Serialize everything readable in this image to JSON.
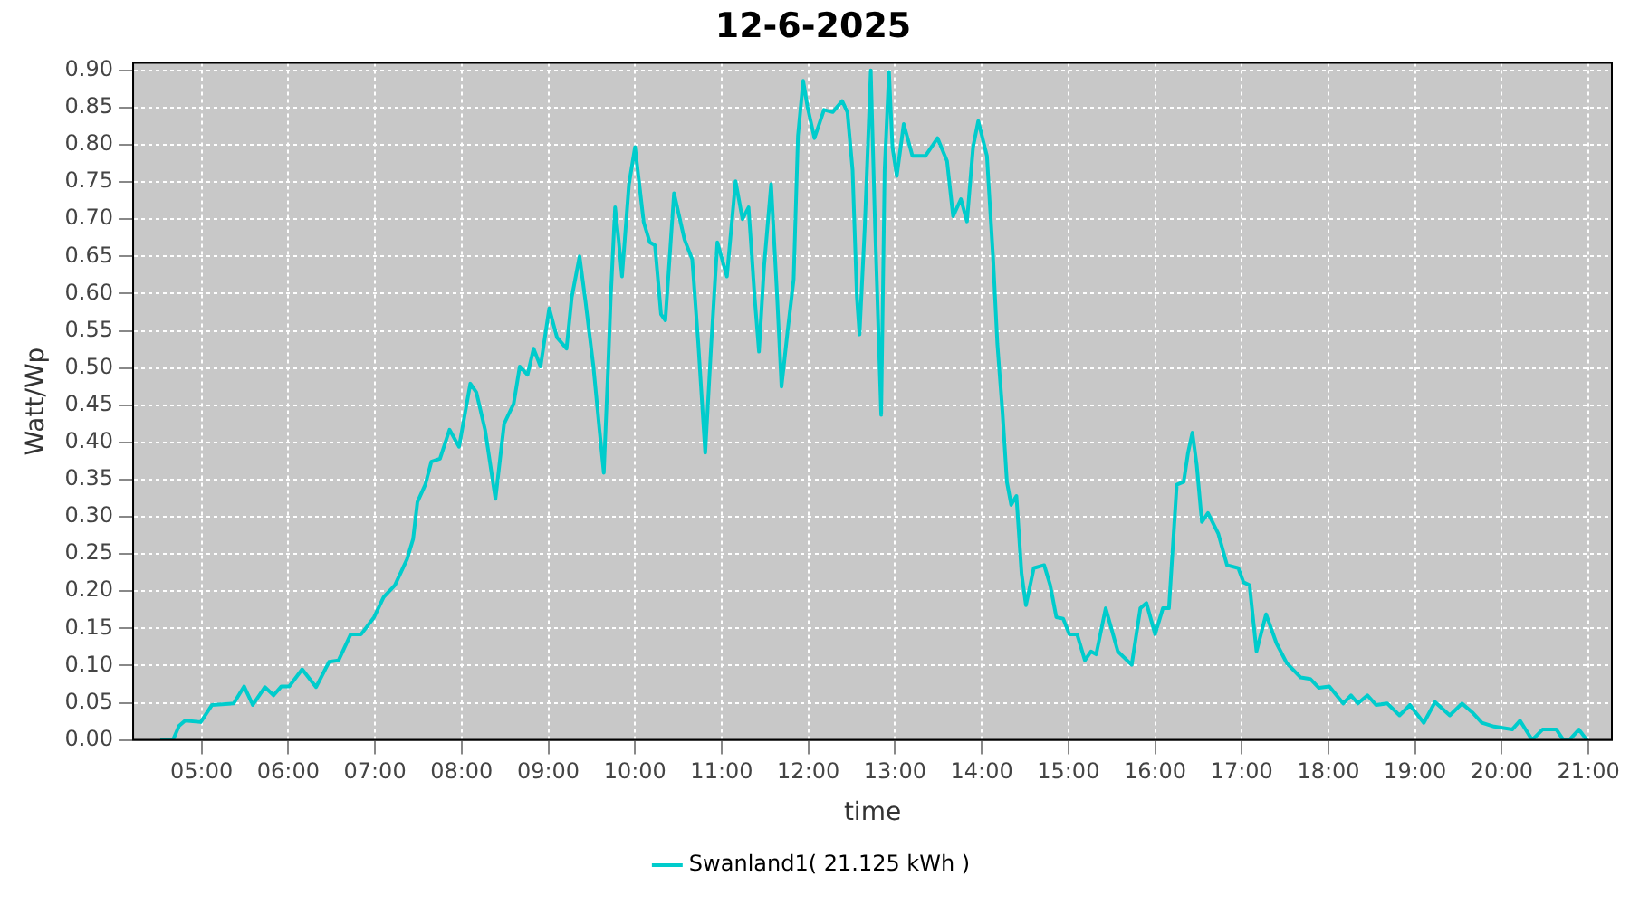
{
  "chart_data": {
    "type": "line",
    "title": "12-6-2025",
    "xlabel": "time",
    "ylabel": "Watt/Wp",
    "legend": "bottom",
    "grid": true,
    "marker": "none",
    "line_style": "solid",
    "xlim": [
      4.21,
      21.27
    ],
    "xticks": [
      {
        "value": 5,
        "label": "05:00"
      },
      {
        "value": 6,
        "label": "06:00"
      },
      {
        "value": 7,
        "label": "07:00"
      },
      {
        "value": 8,
        "label": "08:00"
      },
      {
        "value": 9,
        "label": "09:00"
      },
      {
        "value": 10,
        "label": "10:00"
      },
      {
        "value": 11,
        "label": "11:00"
      },
      {
        "value": 12,
        "label": "12:00"
      },
      {
        "value": 13,
        "label": "13:00"
      },
      {
        "value": 14,
        "label": "14:00"
      },
      {
        "value": 15,
        "label": "15:00"
      },
      {
        "value": 16,
        "label": "16:00"
      },
      {
        "value": 17,
        "label": "17:00"
      },
      {
        "value": 18,
        "label": "18:00"
      },
      {
        "value": 19,
        "label": "19:00"
      },
      {
        "value": 20,
        "label": "20:00"
      },
      {
        "value": 21,
        "label": "21:00"
      }
    ],
    "ylim": [
      0,
      0.91
    ],
    "yticks": [
      {
        "value": 0,
        "label": "0.00"
      },
      {
        "value": 0.05,
        "label": "0.05"
      },
      {
        "value": 0.1,
        "label": "0.10"
      },
      {
        "value": 0.15,
        "label": "0.15"
      },
      {
        "value": 0.2,
        "label": "0.20"
      },
      {
        "value": 0.25,
        "label": "0.25"
      },
      {
        "value": 0.3,
        "label": "0.30"
      },
      {
        "value": 0.35,
        "label": "0.35"
      },
      {
        "value": 0.4,
        "label": "0.40"
      },
      {
        "value": 0.45,
        "label": "0.45"
      },
      {
        "value": 0.5,
        "label": "0.50"
      },
      {
        "value": 0.55,
        "label": "0.55"
      },
      {
        "value": 0.6,
        "label": "0.60"
      },
      {
        "value": 0.65,
        "label": "0.65"
      },
      {
        "value": 0.7,
        "label": "0.70"
      },
      {
        "value": 0.75,
        "label": "0.75"
      },
      {
        "value": 0.8,
        "label": "0.80"
      },
      {
        "value": 0.85,
        "label": "0.85"
      },
      {
        "value": 0.9,
        "label": "0.90"
      }
    ],
    "series": [
      {
        "name": "Swanland1( 21.125 kWh )",
        "color": "#00cccc",
        "x": [
          4.54,
          4.67,
          4.74,
          4.81,
          4.99,
          5.12,
          5.37,
          5.49,
          5.59,
          5.73,
          5.83,
          5.92,
          6.01,
          6.16,
          6.32,
          6.47,
          6.58,
          6.72,
          6.84,
          6.99,
          7.1,
          7.23,
          7.37,
          7.44,
          7.49,
          7.58,
          7.65,
          7.75,
          7.86,
          7.97,
          8.1,
          8.17,
          8.27,
          8.39,
          8.49,
          8.6,
          8.67,
          8.76,
          8.83,
          8.91,
          9.01,
          9.1,
          9.21,
          9.27,
          9.36,
          9.43,
          9.52,
          9.59,
          9.64,
          9.69,
          9.72,
          9.77,
          9.81,
          9.85,
          9.93,
          10.0,
          10.1,
          10.17,
          10.23,
          10.3,
          10.35,
          10.45,
          10.57,
          10.66,
          10.73,
          10.81,
          10.88,
          10.95,
          11.06,
          11.16,
          11.24,
          11.31,
          11.38,
          11.43,
          11.49,
          11.57,
          11.64,
          11.69,
          11.76,
          11.83,
          11.88,
          11.94,
          11.99,
          12.07,
          12.18,
          12.28,
          12.39,
          12.45,
          12.51,
          12.56,
          12.59,
          12.65,
          12.72,
          12.77,
          12.84,
          12.88,
          12.93,
          12.97,
          13.02,
          13.1,
          13.2,
          13.35,
          13.49,
          13.6,
          13.67,
          13.76,
          13.83,
          13.9,
          13.96,
          14.06,
          14.13,
          14.18,
          14.24,
          14.29,
          14.34,
          14.4,
          14.46,
          14.51,
          14.6,
          14.72,
          14.79,
          14.86,
          14.94,
          15.01,
          15.1,
          15.19,
          15.26,
          15.32,
          15.43,
          15.57,
          15.73,
          15.83,
          15.9,
          16.0,
          16.09,
          16.16,
          16.25,
          16.33,
          16.38,
          16.43,
          16.48,
          16.54,
          16.61,
          16.73,
          16.83,
          16.96,
          17.02,
          17.09,
          17.17,
          17.28,
          17.4,
          17.52,
          17.68,
          17.79,
          17.89,
          18.01,
          18.17,
          18.26,
          18.34,
          18.45,
          18.55,
          18.68,
          18.82,
          18.94,
          19.1,
          19.23,
          19.4,
          19.54,
          19.66,
          19.77,
          19.91,
          20.12,
          20.21,
          20.35,
          20.47,
          20.63,
          20.71,
          20.78,
          20.89,
          20.98
        ],
        "values": [
          0,
          0,
          0.019,
          0.026,
          0.024,
          0.047,
          0.049,
          0.072,
          0.047,
          0.071,
          0.06,
          0.072,
          0.072,
          0.095,
          0.071,
          0.105,
          0.107,
          0.142,
          0.142,
          0.165,
          0.192,
          0.208,
          0.243,
          0.27,
          0.32,
          0.343,
          0.374,
          0.378,
          0.417,
          0.394,
          0.479,
          0.467,
          0.417,
          0.324,
          0.425,
          0.452,
          0.502,
          0.491,
          0.526,
          0.502,
          0.58,
          0.541,
          0.526,
          0.595,
          0.65,
          0.588,
          0.502,
          0.417,
          0.359,
          0.502,
          0.595,
          0.716,
          0.673,
          0.623,
          0.747,
          0.797,
          0.696,
          0.669,
          0.665,
          0.572,
          0.564,
          0.735,
          0.673,
          0.646,
          0.533,
          0.386,
          0.533,
          0.669,
          0.623,
          0.751,
          0.7,
          0.716,
          0.595,
          0.522,
          0.638,
          0.747,
          0.595,
          0.475,
          0.549,
          0.619,
          0.812,
          0.886,
          0.851,
          0.809,
          0.847,
          0.844,
          0.859,
          0.844,
          0.766,
          0.595,
          0.545,
          0.688,
          0.9,
          0.688,
          0.437,
          0.766,
          0.898,
          0.797,
          0.758,
          0.828,
          0.785,
          0.785,
          0.809,
          0.778,
          0.704,
          0.727,
          0.697,
          0.797,
          0.832,
          0.785,
          0.65,
          0.533,
          0.44,
          0.347,
          0.316,
          0.328,
          0.223,
          0.181,
          0.231,
          0.235,
          0.208,
          0.165,
          0.163,
          0.142,
          0.142,
          0.107,
          0.119,
          0.115,
          0.177,
          0.119,
          0.101,
          0.177,
          0.184,
          0.142,
          0.177,
          0.177,
          0.343,
          0.347,
          0.386,
          0.413,
          0.37,
          0.293,
          0.305,
          0.277,
          0.235,
          0.231,
          0.212,
          0.208,
          0.119,
          0.169,
          0.13,
          0.103,
          0.084,
          0.082,
          0.07,
          0.072,
          0.049,
          0.06,
          0.049,
          0.06,
          0.047,
          0.049,
          0.033,
          0.047,
          0.023,
          0.051,
          0.033,
          0.049,
          0.037,
          0.023,
          0.018,
          0.014,
          0.026,
          0,
          0.014,
          0.014,
          0,
          0,
          0.014,
          0
        ]
      }
    ]
  }
}
